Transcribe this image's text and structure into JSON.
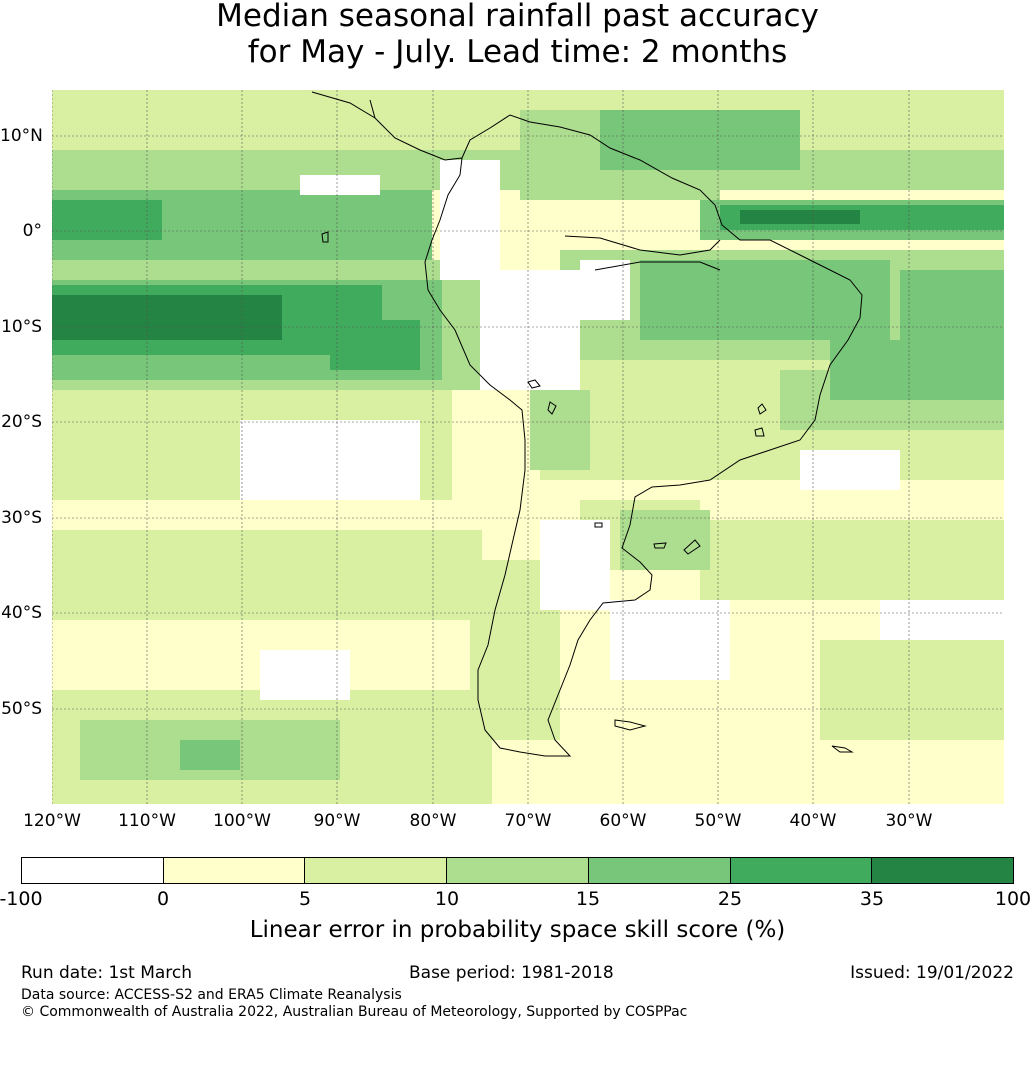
{
  "title": {
    "line1": "Median seasonal rainfall past accuracy",
    "line2": "for May - July. Lead time: 2 months"
  },
  "map": {
    "lon_labels": [
      "120°W",
      "110°W",
      "100°W",
      "90°W",
      "80°W",
      "70°W",
      "60°W",
      "50°W",
      "40°W",
      "30°W"
    ],
    "lat_labels": [
      "10°N",
      "0°",
      "10°S",
      "20°S",
      "30°S",
      "40°S",
      "50°S"
    ],
    "lon_values": [
      -120,
      -110,
      -100,
      -90,
      -80,
      -70,
      -60,
      -50,
      -40,
      -30
    ],
    "lat_values": [
      10,
      0,
      -10,
      -20,
      -30,
      -40,
      -50
    ],
    "lon_range": [
      -120,
      -20
    ],
    "lat_range": [
      -60,
      15
    ]
  },
  "colorbar": {
    "ticks": [
      "-100",
      "0",
      "5",
      "10",
      "15",
      "25",
      "35",
      "100"
    ],
    "colors": [
      "#ffffff",
      "#ffffcc",
      "#d9f0a3",
      "#addd8e",
      "#78c679",
      "#41ab5d",
      "#238443"
    ],
    "label": "Linear error in probability space skill score (%)"
  },
  "footer": {
    "run_date": "Run date: 1st March",
    "base_period": "Base period: 1981-2018",
    "issued": "Issued: 19/01/2022",
    "data_source": "Data source: ACCESS-S2 and ERA5 Climate Reanalysis",
    "copyright": "© Commonwealth of Australia 2022, Australian Bureau of Meteorology, Supported by COSPPac"
  }
}
